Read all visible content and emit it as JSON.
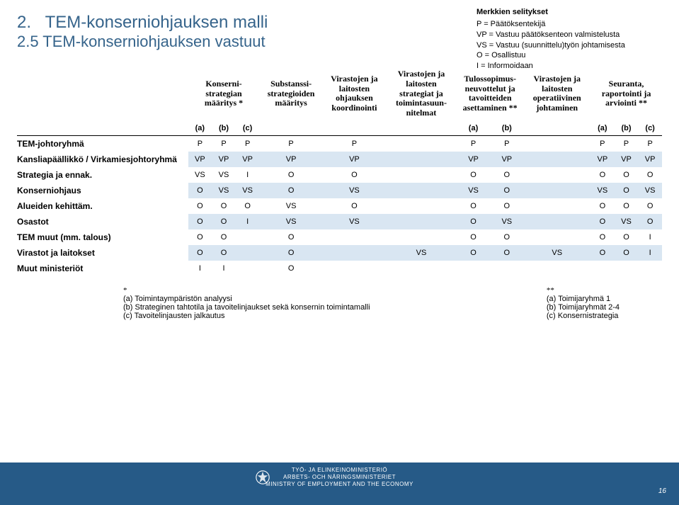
{
  "title_num": "2.",
  "title_main": "TEM-konserniohjauksen malli",
  "title_sub": "2.5 TEM-konserniohjauksen vastuut",
  "legend_title": "Merkkien selitykset",
  "legend_lines": [
    "P   = Päätöksentekijä",
    "VP = Vastuu päätöksenteon valmistelusta",
    "VS = Vastuu (suunnittelu)työn johtamisesta",
    "O  = Osallistuu",
    "I   = Informoidaan"
  ],
  "col_groups": [
    {
      "label": "Konserni- strategian määritys *",
      "subs": [
        "(a)",
        "(b)",
        "(c)"
      ]
    },
    {
      "label": "Substanssi- strategioiden määritys",
      "subs": []
    },
    {
      "label": "Virastojen ja laitosten ohjauksen koordinointi",
      "subs": []
    },
    {
      "label": "Virastojen ja laitosten strategiat ja toimintasuun- nitelmat",
      "subs": []
    },
    {
      "label": "Tulossopimus- neuvottelut ja tavoitteiden asettaminen **",
      "subs": [
        "(a)",
        "(b)"
      ]
    },
    {
      "label": "Virastojen ja laitosten operatiivinen johtaminen",
      "subs": []
    },
    {
      "label": "Seuranta, raportointi ja arviointi **",
      "subs": [
        "(a)",
        "(b)",
        "(c)"
      ]
    }
  ],
  "rows": [
    {
      "label": "TEM-johtoryhmä",
      "cells": [
        "P",
        "P",
        "P",
        "P",
        "P",
        "",
        "P",
        "P",
        "",
        "P",
        "P",
        "P"
      ],
      "striped": false
    },
    {
      "label": "Kansliapäällikkö / Virkamiesjohtoryhmä",
      "cells": [
        "VP",
        "VP",
        "VP",
        "VP",
        "VP",
        "",
        "VP",
        "VP",
        "",
        "VP",
        "VP",
        "VP"
      ],
      "striped": true
    },
    {
      "label": "Strategia ja ennak.",
      "cells": [
        "VS",
        "VS",
        "I",
        "O",
        "O",
        "",
        "O",
        "O",
        "",
        "O",
        "O",
        "O"
      ],
      "striped": false
    },
    {
      "label": "Konserniohjaus",
      "cells": [
        "O",
        "VS",
        "VS",
        "O",
        "VS",
        "",
        "VS",
        "O",
        "",
        "VS",
        "O",
        "VS"
      ],
      "striped": true
    },
    {
      "label": "Alueiden kehittäm.",
      "cells": [
        "O",
        "O",
        "O",
        "VS",
        "O",
        "",
        "O",
        "O",
        "",
        "O",
        "O",
        "O"
      ],
      "striped": false
    },
    {
      "label": "Osastot",
      "cells": [
        "O",
        "O",
        "I",
        "VS",
        "VS",
        "",
        "O",
        "VS",
        "",
        "O",
        "VS",
        "O"
      ],
      "striped": true
    },
    {
      "label": "TEM muut (mm. talous)",
      "cells": [
        "O",
        "O",
        "",
        "O",
        "",
        "",
        "O",
        "O",
        "",
        "O",
        "O",
        "I"
      ],
      "striped": false
    },
    {
      "label": "Virastot ja laitokset",
      "cells": [
        "O",
        "O",
        "",
        "O",
        "",
        "VS",
        "O",
        "O",
        "VS",
        "O",
        "O",
        "I"
      ],
      "striped": true
    },
    {
      "label": "Muut ministeriöt",
      "cells": [
        "I",
        "I",
        "",
        "O",
        "",
        "",
        "",
        "",
        "",
        "",
        "",
        ""
      ],
      "striped": false
    }
  ],
  "footnote_left_star": "*",
  "footnote_left": [
    "(a)  Toimintaympäristön analyysi",
    "(b)  Strateginen tahtotila ja tavoitelinjaukset sekä konsernin toimintamalli",
    "(c)  Tavoitelinjausten jalkautus"
  ],
  "footnote_right_star": "**",
  "footnote_right": [
    "(a)  Toimijaryhmä 1",
    "(b)  Toimijaryhmät 2-4",
    "(c)  Konsernistrategia"
  ],
  "footer_lines": [
    "TYÖ- JA ELINKEINOMINISTERIÖ",
    "ARBETS- OCH NÄRINGSMINISTERIET",
    "MINISTRY OF EMPLOYMENT AND THE ECONOMY"
  ],
  "page_number": "16",
  "colors": {
    "title": "#36648b",
    "stripe": "#d9e6f2",
    "footer": "#265a87"
  }
}
